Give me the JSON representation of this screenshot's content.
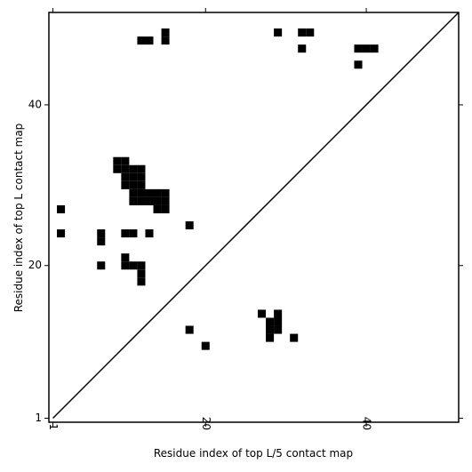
{
  "chart_data": {
    "type": "contact",
    "xlabel": "Residue index of top L/5 contact map",
    "ylabel": "Residue index of top L contact map",
    "xlim": [
      0.5,
      51.5
    ],
    "ylim": [
      0.5,
      51.5
    ],
    "xticks": [
      1,
      20,
      40
    ],
    "yticks": [
      1,
      20,
      40
    ],
    "color": "#000000",
    "x": [
      2,
      2,
      7,
      7,
      7,
      10,
      11,
      13,
      18,
      10,
      10,
      11,
      12,
      12,
      12,
      9,
      10,
      9,
      10,
      11,
      12,
      10,
      11,
      12,
      10,
      11,
      12,
      11,
      12,
      13,
      14,
      15,
      11,
      12,
      13,
      14,
      15,
      14,
      15,
      12,
      13,
      15,
      15,
      29,
      32,
      33,
      32,
      39,
      40,
      41,
      39,
      18,
      20,
      27,
      29,
      28,
      29,
      28,
      29,
      28,
      31
    ],
    "y": [
      27,
      24,
      24,
      23,
      20,
      24,
      24,
      24,
      25,
      21,
      20,
      20,
      20,
      19,
      18,
      33,
      33,
      32,
      32,
      32,
      32,
      31,
      31,
      31,
      30,
      30,
      30,
      29,
      29,
      29,
      29,
      29,
      28,
      28,
      28,
      28,
      28,
      27,
      27,
      48,
      48,
      48,
      49,
      49,
      49,
      49,
      47,
      47,
      47,
      47,
      45,
      12,
      10,
      14,
      14,
      13,
      13,
      12,
      12,
      11,
      11
    ]
  }
}
